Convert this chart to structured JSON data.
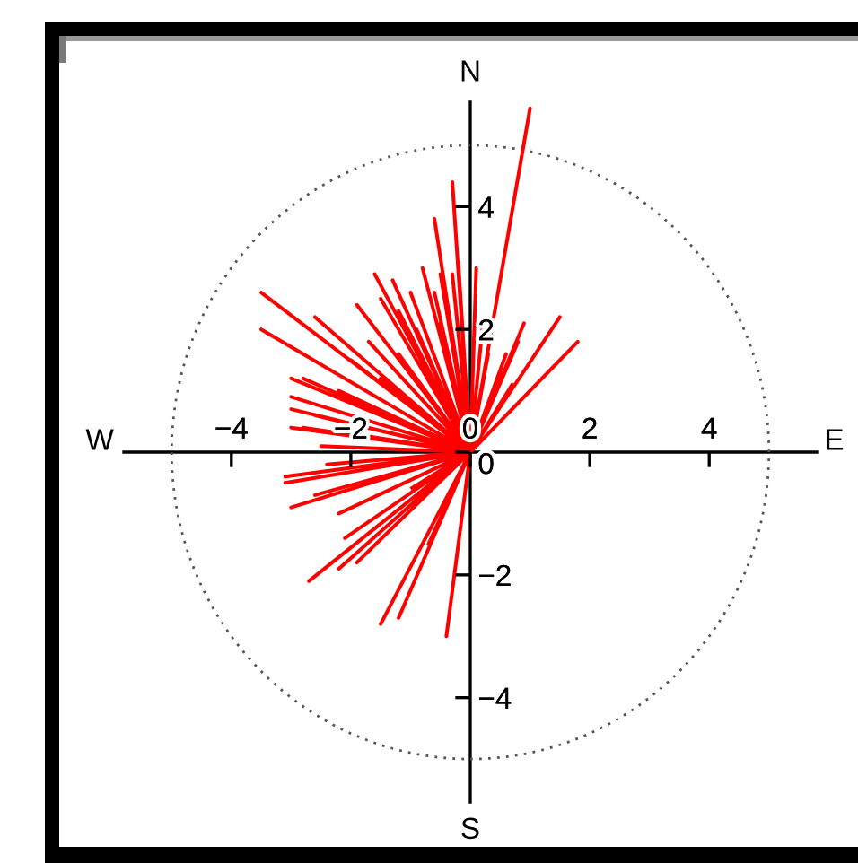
{
  "chart_data": {
    "type": "line",
    "annotations": [
      "N",
      "S",
      "E",
      "W"
    ],
    "xlim": [
      -5.8,
      5.8
    ],
    "ylim": [
      -5.7,
      5.7
    ],
    "xticks": [
      -4,
      -2,
      0,
      2,
      4
    ],
    "yticks": [
      -4,
      -2,
      0,
      2,
      4
    ],
    "series": [
      {
        "color": "#ff0000",
        "x": [
          0,
          1.0,
          0,
          1.8,
          0,
          1.5,
          0,
          0.9,
          0,
          0.8,
          0,
          0.6,
          0,
          0.5,
          0,
          0.3,
          0,
          0.2,
          0,
          0.4,
          0,
          0.7,
          0,
          0.1,
          0,
          -0.3,
          0,
          -0.6,
          0,
          -0.2,
          0,
          -0.6,
          0,
          -0.5,
          0,
          -0.3,
          0,
          -0.5,
          0,
          -0.8,
          0,
          -3.5,
          0,
          -3.5,
          0,
          -2.6,
          0,
          -1.6,
          0,
          -1.3,
          0,
          -1.9,
          0,
          -1.5,
          0,
          -1.2,
          0,
          -1.0,
          0,
          -0.9,
          0,
          -3.0,
          0,
          -2.8,
          0,
          -3.0,
          0,
          -3.0,
          0,
          -3.0,
          0,
          -2.6,
          0,
          -2.5,
          0,
          -2.8,
          0,
          -2.0,
          0,
          -1.7,
          0,
          -2.2,
          0,
          -1.5,
          0,
          -1.2,
          0,
          -2.0,
          0,
          -0.4,
          0,
          -1.5,
          0,
          -1.2,
          0,
          -2.7,
          0,
          -2.2,
          0,
          -2.1,
          0,
          -1.9,
          0,
          -3.0,
          0,
          -2.2,
          0,
          -3.1,
          0,
          -3.1,
          0,
          -2.4,
          0,
          -1.5,
          0,
          -2.6,
          0,
          -0.7,
          0,
          -1.8,
          0,
          -1.0
        ],
        "values": [
          0,
          5.6,
          0,
          1.8,
          0,
          2.2,
          0,
          2.1,
          0,
          1.8,
          0,
          1.6,
          0,
          1.3,
          0,
          1.6,
          0,
          2.0,
          0,
          0.9,
          0,
          1.1,
          0,
          3.0,
          0,
          4.4,
          0,
          3.8,
          0,
          3.1,
          0,
          2.6,
          0,
          2.1,
          0,
          2.9,
          0,
          2.9,
          0,
          3.0,
          0,
          2.6,
          0,
          2.0,
          0,
          2.2,
          0,
          2.9,
          0,
          2.8,
          0,
          2.4,
          0,
          2.5,
          0,
          2.3,
          0,
          2.6,
          0,
          2.0,
          0,
          1.2,
          0,
          1.2,
          0,
          0.9,
          0,
          0.7,
          0,
          0.4,
          0,
          0.6,
          0,
          0.1,
          0,
          0.4,
          0,
          1.5,
          0,
          1.8,
          0,
          1.0,
          0,
          1.2,
          0,
          1.6,
          0,
          0.3,
          0,
          -3.0,
          0,
          -2.8,
          0,
          -2.7,
          0,
          -2.1,
          0,
          -1.9,
          0,
          -1.4,
          0,
          -1.8,
          0,
          -0.9,
          0,
          -1.0,
          0,
          -0.5,
          0,
          -0.4,
          0,
          -0.2,
          0,
          -0.2,
          0,
          -0.7,
          0,
          -1.5,
          0,
          -0.5,
          0,
          -0.6
        ]
      }
    ]
  }
}
